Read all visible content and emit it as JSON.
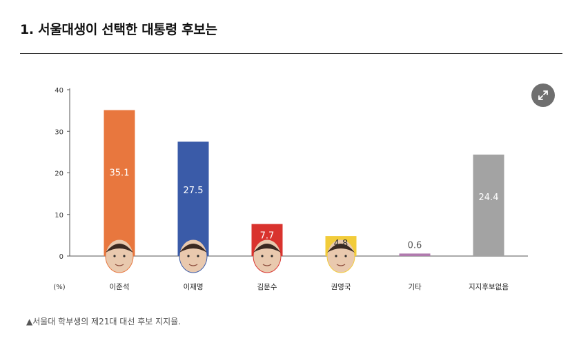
{
  "header": {
    "title": "1. 서울대생이 선택한 대통령 후보는"
  },
  "caption": "▲서울대 학부생의 제21대 대선 후보 지지율.",
  "icons": {
    "expand": "expand-arrows-icon",
    "portrait": "candidate-portrait-icon"
  },
  "chart_data": {
    "type": "bar",
    "title": "",
    "ylabel": "(%)",
    "xlabel": "",
    "ylim": [
      0,
      40
    ],
    "yticks": [
      0,
      10,
      20,
      30,
      40
    ],
    "categories": [
      "이준석",
      "이재명",
      "김문수",
      "권영국",
      "기타",
      "지지후보없음"
    ],
    "values": [
      35.1,
      27.5,
      7.7,
      4.8,
      0.6,
      24.4
    ],
    "value_labels": [
      "35.1",
      "27.5",
      "7.7",
      "4.8",
      "0.6",
      "24.4"
    ],
    "colors": [
      "#E8773E",
      "#3A5BA8",
      "#D9332E",
      "#F2CC3A",
      "#B07AAE",
      "#A3A3A3"
    ],
    "portraits": [
      true,
      true,
      true,
      true,
      false,
      false
    ],
    "grid": false,
    "legend": "none"
  }
}
